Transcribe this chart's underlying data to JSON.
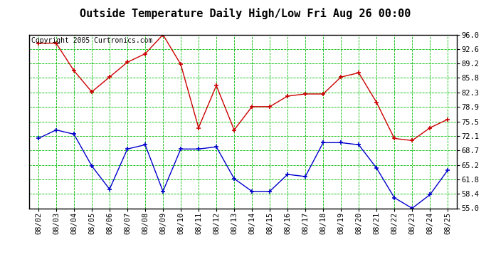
{
  "title": "Outside Temperature Daily High/Low Fri Aug 26 00:00",
  "copyright": "Copyright 2005 Curtronics.com",
  "x_labels": [
    "08/02",
    "08/03",
    "08/04",
    "08/05",
    "08/06",
    "08/07",
    "08/08",
    "08/09",
    "08/10",
    "08/11",
    "08/12",
    "08/13",
    "08/14",
    "08/15",
    "08/16",
    "08/17",
    "08/18",
    "08/19",
    "08/20",
    "08/21",
    "08/22",
    "08/23",
    "08/24",
    "08/25"
  ],
  "high_values": [
    94.0,
    94.0,
    87.5,
    82.5,
    86.0,
    89.5,
    91.5,
    96.0,
    89.0,
    74.0,
    84.0,
    73.5,
    79.0,
    79.0,
    81.5,
    82.0,
    82.0,
    86.0,
    87.0,
    80.0,
    71.5,
    71.0,
    74.0,
    76.0
  ],
  "low_values": [
    71.5,
    73.5,
    72.5,
    65.0,
    59.5,
    69.0,
    70.0,
    59.0,
    69.0,
    69.0,
    69.5,
    62.0,
    59.0,
    59.0,
    63.0,
    62.5,
    70.5,
    70.5,
    70.0,
    64.5,
    57.5,
    55.0,
    58.2,
    64.0
  ],
  "high_color": "#cc0000",
  "low_color": "#0000cc",
  "bg_color": "#ffffff",
  "plot_bg_color": "#ffffff",
  "grid_color": "#00bb00",
  "ylim_min": 55.0,
  "ylim_max": 96.0,
  "yticks": [
    55.0,
    58.4,
    61.8,
    65.2,
    68.7,
    72.1,
    75.5,
    78.9,
    82.3,
    85.8,
    89.2,
    92.6,
    96.0
  ],
  "title_fontsize": 11,
  "tick_fontsize": 7.5,
  "copyright_fontsize": 7
}
